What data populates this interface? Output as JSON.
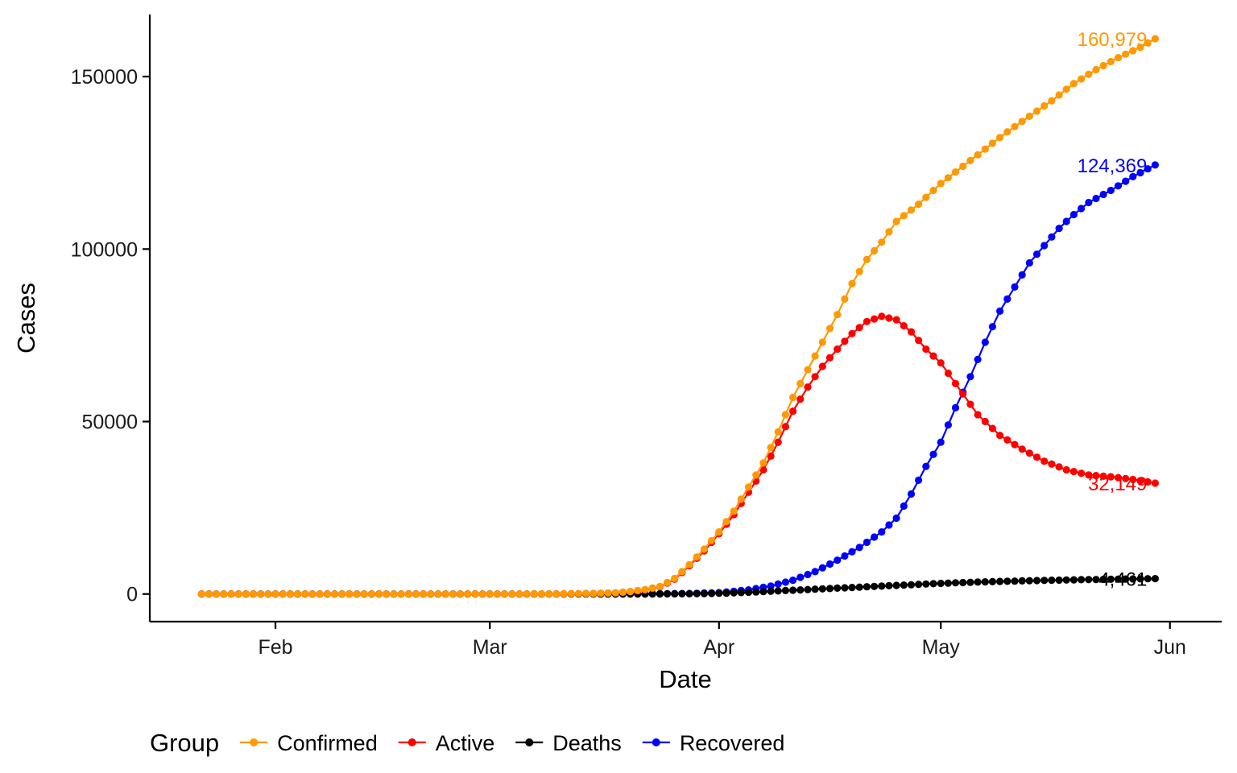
{
  "chart_data": {
    "type": "line",
    "xlabel": "Date",
    "ylabel": "Cases",
    "x_ticks": [
      "Feb",
      "Mar",
      "Apr",
      "May",
      "Jun"
    ],
    "y_ticks": [
      "0",
      "50000",
      "100000",
      "150000"
    ],
    "ylim": [
      -8000,
      168000
    ],
    "xlim": [
      "2020-01-15",
      "2020-06-08"
    ],
    "grid": false,
    "legend_position": "bottom",
    "legend_title": "Group",
    "markers": true,
    "series": [
      {
        "name": "Confirmed",
        "color": "#FF9900",
        "end_label": "160,979",
        "points": [
          [
            "2020-01-22",
            0
          ],
          [
            "2020-03-01",
            0
          ],
          [
            "2020-03-10",
            40
          ],
          [
            "2020-03-15",
            170
          ],
          [
            "2020-03-18",
            360
          ],
          [
            "2020-03-20",
            720
          ],
          [
            "2020-03-22",
            1300
          ],
          [
            "2020-03-24",
            2200
          ],
          [
            "2020-03-26",
            4500
          ],
          [
            "2020-03-28",
            8500
          ],
          [
            "2020-03-30",
            13000
          ],
          [
            "2020-04-01",
            18000
          ],
          [
            "2020-04-03",
            24000
          ],
          [
            "2020-04-05",
            31000
          ],
          [
            "2020-04-07",
            38000
          ],
          [
            "2020-04-09",
            47000
          ],
          [
            "2020-04-11",
            57000
          ],
          [
            "2020-04-13",
            65000
          ],
          [
            "2020-04-15",
            73000
          ],
          [
            "2020-04-17",
            81000
          ],
          [
            "2020-04-19",
            90000
          ],
          [
            "2020-04-21",
            97000
          ],
          [
            "2020-04-23",
            102000
          ],
          [
            "2020-04-25",
            108000
          ],
          [
            "2020-04-28",
            113000
          ],
          [
            "2020-05-01",
            119000
          ],
          [
            "2020-05-04",
            124000
          ],
          [
            "2020-05-07",
            129000
          ],
          [
            "2020-05-10",
            134000
          ],
          [
            "2020-05-13",
            138500
          ],
          [
            "2020-05-16",
            143000
          ],
          [
            "2020-05-19",
            148000
          ],
          [
            "2020-05-22",
            152000
          ],
          [
            "2020-05-25",
            155500
          ],
          [
            "2020-05-28",
            158500
          ],
          [
            "2020-05-30",
            160979
          ]
        ]
      },
      {
        "name": "Active",
        "color": "#FF0000",
        "end_label": "32,149",
        "points": [
          [
            "2020-01-22",
            0
          ],
          [
            "2020-03-01",
            0
          ],
          [
            "2020-03-10",
            35
          ],
          [
            "2020-03-15",
            160
          ],
          [
            "2020-03-18",
            340
          ],
          [
            "2020-03-20",
            680
          ],
          [
            "2020-03-22",
            1200
          ],
          [
            "2020-03-24",
            2100
          ],
          [
            "2020-03-26",
            4300
          ],
          [
            "2020-03-28",
            8200
          ],
          [
            "2020-03-30",
            12500
          ],
          [
            "2020-04-01",
            17500
          ],
          [
            "2020-04-03",
            23000
          ],
          [
            "2020-04-05",
            29500
          ],
          [
            "2020-04-07",
            36000
          ],
          [
            "2020-04-09",
            44000
          ],
          [
            "2020-04-11",
            53000
          ],
          [
            "2020-04-13",
            60000
          ],
          [
            "2020-04-15",
            66000
          ],
          [
            "2020-04-17",
            71000
          ],
          [
            "2020-04-19",
            75500
          ],
          [
            "2020-04-21",
            79000
          ],
          [
            "2020-04-23",
            80500
          ],
          [
            "2020-04-25",
            79500
          ],
          [
            "2020-04-27",
            76000
          ],
          [
            "2020-04-29",
            71000
          ],
          [
            "2020-05-01",
            67000
          ],
          [
            "2020-05-03",
            61000
          ],
          [
            "2020-05-06",
            52000
          ],
          [
            "2020-05-09",
            46000
          ],
          [
            "2020-05-12",
            42000
          ],
          [
            "2020-05-15",
            38500
          ],
          [
            "2020-05-18",
            36000
          ],
          [
            "2020-05-21",
            34500
          ],
          [
            "2020-05-24",
            34000
          ],
          [
            "2020-05-27",
            33200
          ],
          [
            "2020-05-30",
            32149
          ]
        ]
      },
      {
        "name": "Deaths",
        "color": "#000000",
        "end_label": "4,461",
        "points": [
          [
            "2020-01-22",
            0
          ],
          [
            "2020-03-15",
            0
          ],
          [
            "2020-03-22",
            15
          ],
          [
            "2020-03-29",
            90
          ],
          [
            "2020-04-02",
            250
          ],
          [
            "2020-04-06",
            600
          ],
          [
            "2020-04-10",
            1000
          ],
          [
            "2020-04-15",
            1500
          ],
          [
            "2020-04-20",
            2000
          ],
          [
            "2020-04-25",
            2500
          ],
          [
            "2020-04-30",
            3000
          ],
          [
            "2020-05-05",
            3400
          ],
          [
            "2020-05-10",
            3700
          ],
          [
            "2020-05-15",
            3950
          ],
          [
            "2020-05-20",
            4150
          ],
          [
            "2020-05-25",
            4320
          ],
          [
            "2020-05-30",
            4461
          ]
        ]
      },
      {
        "name": "Recovered",
        "color": "#0000FF",
        "end_label": "124,369",
        "points": [
          [
            "2020-01-22",
            0
          ],
          [
            "2020-03-10",
            0
          ],
          [
            "2020-03-20",
            30
          ],
          [
            "2020-03-28",
            150
          ],
          [
            "2020-04-01",
            400
          ],
          [
            "2020-04-05",
            1200
          ],
          [
            "2020-04-08",
            2300
          ],
          [
            "2020-04-11",
            4000
          ],
          [
            "2020-04-14",
            6500
          ],
          [
            "2020-04-17",
            9800
          ],
          [
            "2020-04-20",
            13500
          ],
          [
            "2020-04-23",
            18000
          ],
          [
            "2020-04-25",
            22000
          ],
          [
            "2020-04-27",
            29000
          ],
          [
            "2020-04-29",
            37000
          ],
          [
            "2020-05-01",
            44000
          ],
          [
            "2020-05-03",
            54000
          ],
          [
            "2020-05-05",
            63000
          ],
          [
            "2020-05-07",
            73000
          ],
          [
            "2020-05-09",
            82000
          ],
          [
            "2020-05-11",
            89000
          ],
          [
            "2020-05-13",
            96000
          ],
          [
            "2020-05-15",
            101000
          ],
          [
            "2020-05-17",
            106000
          ],
          [
            "2020-05-19",
            110000
          ],
          [
            "2020-05-21",
            113500
          ],
          [
            "2020-05-24",
            117000
          ],
          [
            "2020-05-27",
            121000
          ],
          [
            "2020-05-30",
            124369
          ]
        ]
      }
    ]
  }
}
